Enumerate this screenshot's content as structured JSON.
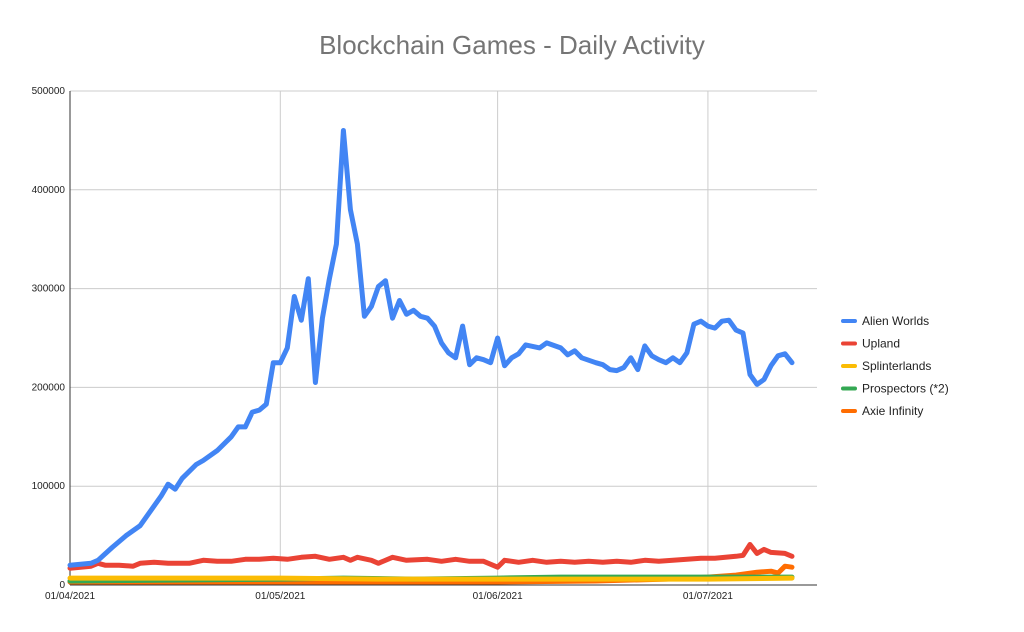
{
  "chart_data": {
    "type": "line",
    "title": "Blockchain Games - Daily Activity",
    "xlabel": "",
    "ylabel": "",
    "x_start": "2021-04-01",
    "x_end": "2021-07-09",
    "xticks": [
      "01/04/2021",
      "01/05/2021",
      "01/06/2021",
      "01/07/2021"
    ],
    "yticks": [
      "0",
      "100000",
      "200000",
      "300000",
      "400000",
      "500000"
    ],
    "ylim": [
      0,
      500000
    ],
    "grid": true,
    "legend_position": "right",
    "series": [
      {
        "name": "Alien Worlds",
        "color": "#4285f4",
        "points": [
          [
            "2021-04-01",
            20000
          ],
          [
            "2021-04-04",
            22000
          ],
          [
            "2021-04-05",
            25000
          ],
          [
            "2021-04-07",
            38000
          ],
          [
            "2021-04-09",
            50000
          ],
          [
            "2021-04-11",
            60000
          ],
          [
            "2021-04-12",
            70000
          ],
          [
            "2021-04-14",
            90000
          ],
          [
            "2021-04-15",
            102000
          ],
          [
            "2021-04-16",
            97000
          ],
          [
            "2021-04-17",
            108000
          ],
          [
            "2021-04-19",
            122000
          ],
          [
            "2021-04-20",
            126000
          ],
          [
            "2021-04-22",
            136000
          ],
          [
            "2021-04-24",
            150000
          ],
          [
            "2021-04-25",
            160000
          ],
          [
            "2021-04-26",
            160000
          ],
          [
            "2021-04-27",
            175000
          ],
          [
            "2021-04-28",
            177000
          ],
          [
            "2021-04-29",
            183000
          ],
          [
            "2021-04-30",
            225000
          ],
          [
            "2021-05-01",
            225000
          ],
          [
            "2021-05-02",
            240000
          ],
          [
            "2021-05-03",
            292000
          ],
          [
            "2021-05-04",
            268000
          ],
          [
            "2021-05-05",
            310000
          ],
          [
            "2021-05-06",
            205000
          ],
          [
            "2021-05-07",
            270000
          ],
          [
            "2021-05-08",
            310000
          ],
          [
            "2021-05-09",
            345000
          ],
          [
            "2021-05-10",
            460000
          ],
          [
            "2021-05-11",
            380000
          ],
          [
            "2021-05-12",
            345000
          ],
          [
            "2021-05-13",
            272000
          ],
          [
            "2021-05-14",
            282000
          ],
          [
            "2021-05-15",
            302000
          ],
          [
            "2021-05-16",
            308000
          ],
          [
            "2021-05-17",
            270000
          ],
          [
            "2021-05-18",
            288000
          ],
          [
            "2021-05-19",
            274000
          ],
          [
            "2021-05-20",
            278000
          ],
          [
            "2021-05-21",
            272000
          ],
          [
            "2021-05-22",
            270000
          ],
          [
            "2021-05-23",
            262000
          ],
          [
            "2021-05-24",
            245000
          ],
          [
            "2021-05-25",
            235000
          ],
          [
            "2021-05-26",
            230000
          ],
          [
            "2021-05-27",
            262000
          ],
          [
            "2021-05-28",
            223000
          ],
          [
            "2021-05-29",
            230000
          ],
          [
            "2021-05-30",
            228000
          ],
          [
            "2021-05-31",
            225000
          ],
          [
            "2021-06-01",
            250000
          ],
          [
            "2021-06-02",
            222000
          ],
          [
            "2021-06-03",
            230000
          ],
          [
            "2021-06-04",
            234000
          ],
          [
            "2021-06-05",
            243000
          ],
          [
            "2021-06-07",
            240000
          ],
          [
            "2021-06-08",
            245000
          ],
          [
            "2021-06-10",
            240000
          ],
          [
            "2021-06-11",
            233000
          ],
          [
            "2021-06-12",
            237000
          ],
          [
            "2021-06-13",
            230000
          ],
          [
            "2021-06-15",
            225000
          ],
          [
            "2021-06-16",
            223000
          ],
          [
            "2021-06-17",
            218000
          ],
          [
            "2021-06-18",
            217000
          ],
          [
            "2021-06-19",
            220000
          ],
          [
            "2021-06-20",
            230000
          ],
          [
            "2021-06-21",
            218000
          ],
          [
            "2021-06-22",
            242000
          ],
          [
            "2021-06-23",
            232000
          ],
          [
            "2021-06-24",
            228000
          ],
          [
            "2021-06-25",
            225000
          ],
          [
            "2021-06-26",
            230000
          ],
          [
            "2021-06-27",
            225000
          ],
          [
            "2021-06-28",
            235000
          ],
          [
            "2021-06-29",
            264000
          ],
          [
            "2021-06-30",
            267000
          ],
          [
            "2021-07-01",
            262000
          ],
          [
            "2021-07-02",
            260000
          ],
          [
            "2021-07-03",
            267000
          ],
          [
            "2021-07-04",
            268000
          ],
          [
            "2021-07-05",
            258000
          ],
          [
            "2021-07-06",
            255000
          ],
          [
            "2021-07-07",
            213000
          ],
          [
            "2021-07-08",
            203000
          ],
          [
            "2021-07-09",
            208000
          ],
          [
            "2021-07-10",
            222000
          ],
          [
            "2021-07-11",
            232000
          ],
          [
            "2021-07-12",
            234000
          ],
          [
            "2021-07-13",
            225000
          ]
        ]
      },
      {
        "name": "Upland",
        "color": "#ea4335",
        "points": [
          [
            "2021-04-01",
            17000
          ],
          [
            "2021-04-04",
            19000
          ],
          [
            "2021-04-05",
            22000
          ],
          [
            "2021-04-06",
            20000
          ],
          [
            "2021-04-08",
            20000
          ],
          [
            "2021-04-10",
            19000
          ],
          [
            "2021-04-11",
            22000
          ],
          [
            "2021-04-13",
            23000
          ],
          [
            "2021-04-15",
            22000
          ],
          [
            "2021-04-18",
            22000
          ],
          [
            "2021-04-20",
            25000
          ],
          [
            "2021-04-22",
            24000
          ],
          [
            "2021-04-24",
            24000
          ],
          [
            "2021-04-26",
            26000
          ],
          [
            "2021-04-28",
            26000
          ],
          [
            "2021-04-30",
            27000
          ],
          [
            "2021-05-02",
            26000
          ],
          [
            "2021-05-04",
            28000
          ],
          [
            "2021-05-06",
            29000
          ],
          [
            "2021-05-08",
            26000
          ],
          [
            "2021-05-10",
            28000
          ],
          [
            "2021-05-11",
            25000
          ],
          [
            "2021-05-12",
            28000
          ],
          [
            "2021-05-14",
            25000
          ],
          [
            "2021-05-15",
            22000
          ],
          [
            "2021-05-17",
            28000
          ],
          [
            "2021-05-19",
            25000
          ],
          [
            "2021-05-22",
            26000
          ],
          [
            "2021-05-24",
            24000
          ],
          [
            "2021-05-26",
            26000
          ],
          [
            "2021-05-28",
            24000
          ],
          [
            "2021-05-30",
            24000
          ],
          [
            "2021-06-01",
            18000
          ],
          [
            "2021-06-02",
            25000
          ],
          [
            "2021-06-04",
            23000
          ],
          [
            "2021-06-06",
            25000
          ],
          [
            "2021-06-08",
            23000
          ],
          [
            "2021-06-10",
            24000
          ],
          [
            "2021-06-12",
            23000
          ],
          [
            "2021-06-14",
            24000
          ],
          [
            "2021-06-16",
            23000
          ],
          [
            "2021-06-18",
            24000
          ],
          [
            "2021-06-20",
            23000
          ],
          [
            "2021-06-22",
            25000
          ],
          [
            "2021-06-24",
            24000
          ],
          [
            "2021-06-26",
            25000
          ],
          [
            "2021-06-28",
            26000
          ],
          [
            "2021-06-30",
            27000
          ],
          [
            "2021-07-02",
            27000
          ],
          [
            "2021-07-05",
            29000
          ],
          [
            "2021-07-06",
            30000
          ],
          [
            "2021-07-07",
            41000
          ],
          [
            "2021-07-08",
            32000
          ],
          [
            "2021-07-09",
            36000
          ],
          [
            "2021-07-10",
            33000
          ],
          [
            "2021-07-12",
            32000
          ],
          [
            "2021-07-13",
            29000
          ]
        ]
      },
      {
        "name": "Splinterlands",
        "color": "#fbbc04",
        "points": [
          [
            "2021-04-01",
            7000
          ],
          [
            "2021-04-15",
            7000
          ],
          [
            "2021-05-01",
            7000
          ],
          [
            "2021-05-15",
            6000
          ],
          [
            "2021-06-01",
            6000
          ],
          [
            "2021-06-15",
            6000
          ],
          [
            "2021-07-01",
            6000
          ],
          [
            "2021-07-13",
            7000
          ]
        ]
      },
      {
        "name": "Prospectors (*2)",
        "color": "#34a853",
        "points": [
          [
            "2021-04-01",
            4000
          ],
          [
            "2021-04-15",
            5000
          ],
          [
            "2021-05-01",
            6000
          ],
          [
            "2021-05-10",
            7000
          ],
          [
            "2021-05-20",
            6000
          ],
          [
            "2021-06-01",
            7000
          ],
          [
            "2021-06-10",
            8000
          ],
          [
            "2021-06-20",
            8000
          ],
          [
            "2021-07-01",
            8000
          ],
          [
            "2021-07-13",
            8000
          ]
        ]
      },
      {
        "name": "Axie Infinity",
        "color": "#ff6d01",
        "points": [
          [
            "2021-04-01",
            3000
          ],
          [
            "2021-04-15",
            3000
          ],
          [
            "2021-05-01",
            3000
          ],
          [
            "2021-05-15",
            3000
          ],
          [
            "2021-06-01",
            3000
          ],
          [
            "2021-06-15",
            4000
          ],
          [
            "2021-06-25",
            6000
          ],
          [
            "2021-07-01",
            8000
          ],
          [
            "2021-07-05",
            10000
          ],
          [
            "2021-07-08",
            13000
          ],
          [
            "2021-07-10",
            14000
          ],
          [
            "2021-07-11",
            12000
          ],
          [
            "2021-07-12",
            19000
          ],
          [
            "2021-07-13",
            18000
          ]
        ]
      }
    ]
  }
}
